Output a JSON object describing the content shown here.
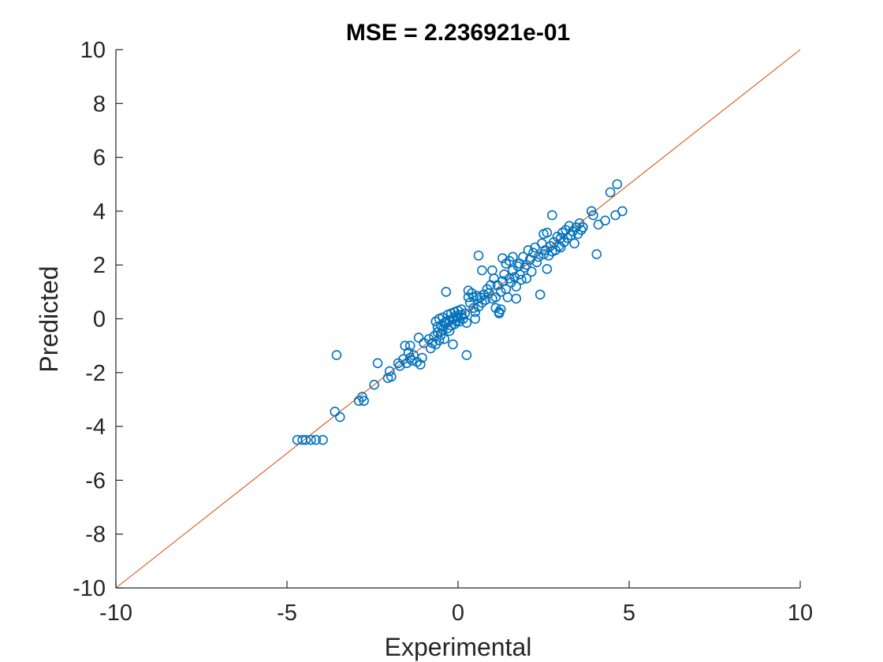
{
  "chart_data": {
    "type": "scatter",
    "title": "MSE = 2.236921e-01",
    "xlabel": "Experimental",
    "ylabel": "Predicted",
    "xlim": [
      -10,
      10
    ],
    "ylim": [
      -10,
      10
    ],
    "x_ticks": [
      -10,
      -5,
      0,
      5,
      10
    ],
    "y_ticks": [
      -10,
      -8,
      -6,
      -4,
      -2,
      0,
      2,
      4,
      6,
      8,
      10
    ],
    "x_tick_labels": [
      "-10",
      "-5",
      "0",
      "5",
      "10"
    ],
    "y_tick_labels": [
      "-10",
      "-8",
      "-6",
      "-4",
      "-2",
      "0",
      "2",
      "4",
      "6",
      "8",
      "10"
    ],
    "grid": false,
    "reference_line": {
      "x": [
        -10,
        10
      ],
      "y": [
        -10,
        10
      ],
      "color": "#D95319"
    },
    "marker_color": "#0072BD",
    "marker": "open-circle",
    "points": [
      [
        -4.7,
        -4.5
      ],
      [
        -4.55,
        -4.5
      ],
      [
        -4.45,
        -4.5
      ],
      [
        -4.3,
        -4.5
      ],
      [
        -4.15,
        -4.5
      ],
      [
        -3.95,
        -4.5
      ],
      [
        -3.6,
        -3.45
      ],
      [
        -3.55,
        -1.35
      ],
      [
        -3.45,
        -3.65
      ],
      [
        -2.9,
        -3.05
      ],
      [
        -2.75,
        -3.05
      ],
      [
        -2.8,
        -2.9
      ],
      [
        -2.45,
        -2.45
      ],
      [
        -2.35,
        -1.65
      ],
      [
        -2.05,
        -2.2
      ],
      [
        -2.0,
        -1.95
      ],
      [
        -1.95,
        -2.15
      ],
      [
        -1.75,
        -1.65
      ],
      [
        -1.7,
        -1.75
      ],
      [
        -1.6,
        -1.5
      ],
      [
        -1.55,
        -1.0
      ],
      [
        -1.5,
        -1.65
      ],
      [
        -1.45,
        -1.25
      ],
      [
        -1.4,
        -1.0
      ],
      [
        -1.4,
        -1.45
      ],
      [
        -1.35,
        -1.55
      ],
      [
        -1.3,
        -1.35
      ],
      [
        -1.2,
        -1.6
      ],
      [
        -1.15,
        -0.7
      ],
      [
        -1.1,
        -1.7
      ],
      [
        -1.05,
        -1.45
      ],
      [
        -1.0,
        -0.9
      ],
      [
        -0.85,
        -0.75
      ],
      [
        -0.8,
        -1.1
      ],
      [
        -0.75,
        -0.9
      ],
      [
        -0.7,
        -0.65
      ],
      [
        -0.65,
        -0.95
      ],
      [
        -0.65,
        -0.1
      ],
      [
        -0.6,
        -0.3
      ],
      [
        -0.6,
        -0.5
      ],
      [
        -0.55,
        -0.8
      ],
      [
        -0.55,
        0.0
      ],
      [
        -0.5,
        -0.25
      ],
      [
        -0.5,
        -0.6
      ],
      [
        -0.45,
        -0.4
      ],
      [
        -0.45,
        0.05
      ],
      [
        -0.4,
        -0.15
      ],
      [
        -0.4,
        -0.75
      ],
      [
        -0.35,
        -0.1
      ],
      [
        -0.35,
        1.0
      ],
      [
        -0.3,
        -0.35
      ],
      [
        -0.3,
        0.15
      ],
      [
        -0.25,
        -0.05
      ],
      [
        -0.25,
        -0.45
      ],
      [
        -0.2,
        0.2
      ],
      [
        -0.2,
        -0.25
      ],
      [
        -0.15,
        0.0
      ],
      [
        -0.15,
        -0.95
      ],
      [
        -0.1,
        -0.2
      ],
      [
        -0.1,
        0.25
      ],
      [
        -0.05,
        0.1
      ],
      [
        -0.05,
        -0.1
      ],
      [
        0.0,
        0.05
      ],
      [
        0.0,
        0.3
      ],
      [
        0.05,
        -0.1
      ],
      [
        0.1,
        0.15
      ],
      [
        0.1,
        0.35
      ],
      [
        0.15,
        0.0
      ],
      [
        0.2,
        0.2
      ],
      [
        0.25,
        -0.15
      ],
      [
        0.25,
        -1.35
      ],
      [
        0.3,
        0.8
      ],
      [
        0.3,
        1.05
      ],
      [
        0.35,
        0.6
      ],
      [
        0.4,
        0.95
      ],
      [
        0.45,
        0.8
      ],
      [
        0.45,
        0.4
      ],
      [
        0.5,
        0.25
      ],
      [
        0.5,
        0.0
      ],
      [
        0.55,
        0.85
      ],
      [
        0.6,
        2.35
      ],
      [
        0.6,
        0.45
      ],
      [
        0.65,
        0.8
      ],
      [
        0.7,
        0.6
      ],
      [
        0.7,
        1.8
      ],
      [
        0.75,
        0.9
      ],
      [
        0.8,
        0.7
      ],
      [
        0.85,
        1.1
      ],
      [
        0.9,
        0.95
      ],
      [
        0.95,
        1.25
      ],
      [
        1.0,
        0.75
      ],
      [
        1.0,
        1.8
      ],
      [
        1.05,
        1.5
      ],
      [
        1.1,
        0.4
      ],
      [
        1.1,
        0.8
      ],
      [
        1.15,
        1.25
      ],
      [
        1.2,
        0.25
      ],
      [
        1.2,
        0.2
      ],
      [
        1.25,
        0.35
      ],
      [
        1.25,
        1.0
      ],
      [
        1.3,
        2.25
      ],
      [
        1.3,
        1.4
      ],
      [
        1.35,
        1.65
      ],
      [
        1.4,
        1.1
      ],
      [
        1.4,
        2.05
      ],
      [
        1.45,
        0.8
      ],
      [
        1.5,
        1.5
      ],
      [
        1.5,
        2.15
      ],
      [
        1.55,
        1.35
      ],
      [
        1.6,
        1.8
      ],
      [
        1.6,
        2.3
      ],
      [
        1.65,
        1.55
      ],
      [
        1.7,
        1.2
      ],
      [
        1.7,
        0.75
      ],
      [
        1.75,
        1.95
      ],
      [
        1.8,
        2.05
      ],
      [
        1.8,
        1.65
      ],
      [
        1.85,
        1.45
      ],
      [
        1.9,
        2.3
      ],
      [
        1.95,
        1.9
      ],
      [
        2.0,
        2.0
      ],
      [
        2.0,
        1.5
      ],
      [
        2.05,
        2.55
      ],
      [
        2.1,
        2.2
      ],
      [
        2.15,
        1.75
      ],
      [
        2.2,
        2.45
      ],
      [
        2.25,
        2.65
      ],
      [
        2.3,
        2.1
      ],
      [
        2.35,
        2.3
      ],
      [
        2.4,
        0.9
      ],
      [
        2.45,
        2.8
      ],
      [
        2.5,
        2.4
      ],
      [
        2.5,
        3.15
      ],
      [
        2.55,
        2.55
      ],
      [
        2.6,
        3.2
      ],
      [
        2.6,
        1.85
      ],
      [
        2.65,
        2.35
      ],
      [
        2.7,
        2.7
      ],
      [
        2.75,
        3.85
      ],
      [
        2.75,
        2.5
      ],
      [
        2.8,
        2.85
      ],
      [
        2.85,
        2.55
      ],
      [
        2.9,
        3.05
      ],
      [
        2.95,
        2.7
      ],
      [
        3.0,
        3.0
      ],
      [
        3.0,
        2.65
      ],
      [
        3.05,
        3.2
      ],
      [
        3.1,
        2.85
      ],
      [
        3.15,
        3.3
      ],
      [
        3.2,
        3.0
      ],
      [
        3.25,
        3.45
      ],
      [
        3.3,
        3.1
      ],
      [
        3.35,
        3.25
      ],
      [
        3.4,
        2.8
      ],
      [
        3.45,
        3.4
      ],
      [
        3.5,
        3.15
      ],
      [
        3.55,
        3.55
      ],
      [
        3.6,
        3.3
      ],
      [
        3.65,
        3.4
      ],
      [
        3.9,
        4.0
      ],
      [
        3.95,
        3.85
      ],
      [
        4.05,
        2.4
      ],
      [
        4.1,
        3.5
      ],
      [
        4.3,
        3.65
      ],
      [
        4.45,
        4.7
      ],
      [
        4.6,
        3.85
      ],
      [
        4.65,
        5.0
      ],
      [
        4.8,
        4.0
      ]
    ]
  }
}
